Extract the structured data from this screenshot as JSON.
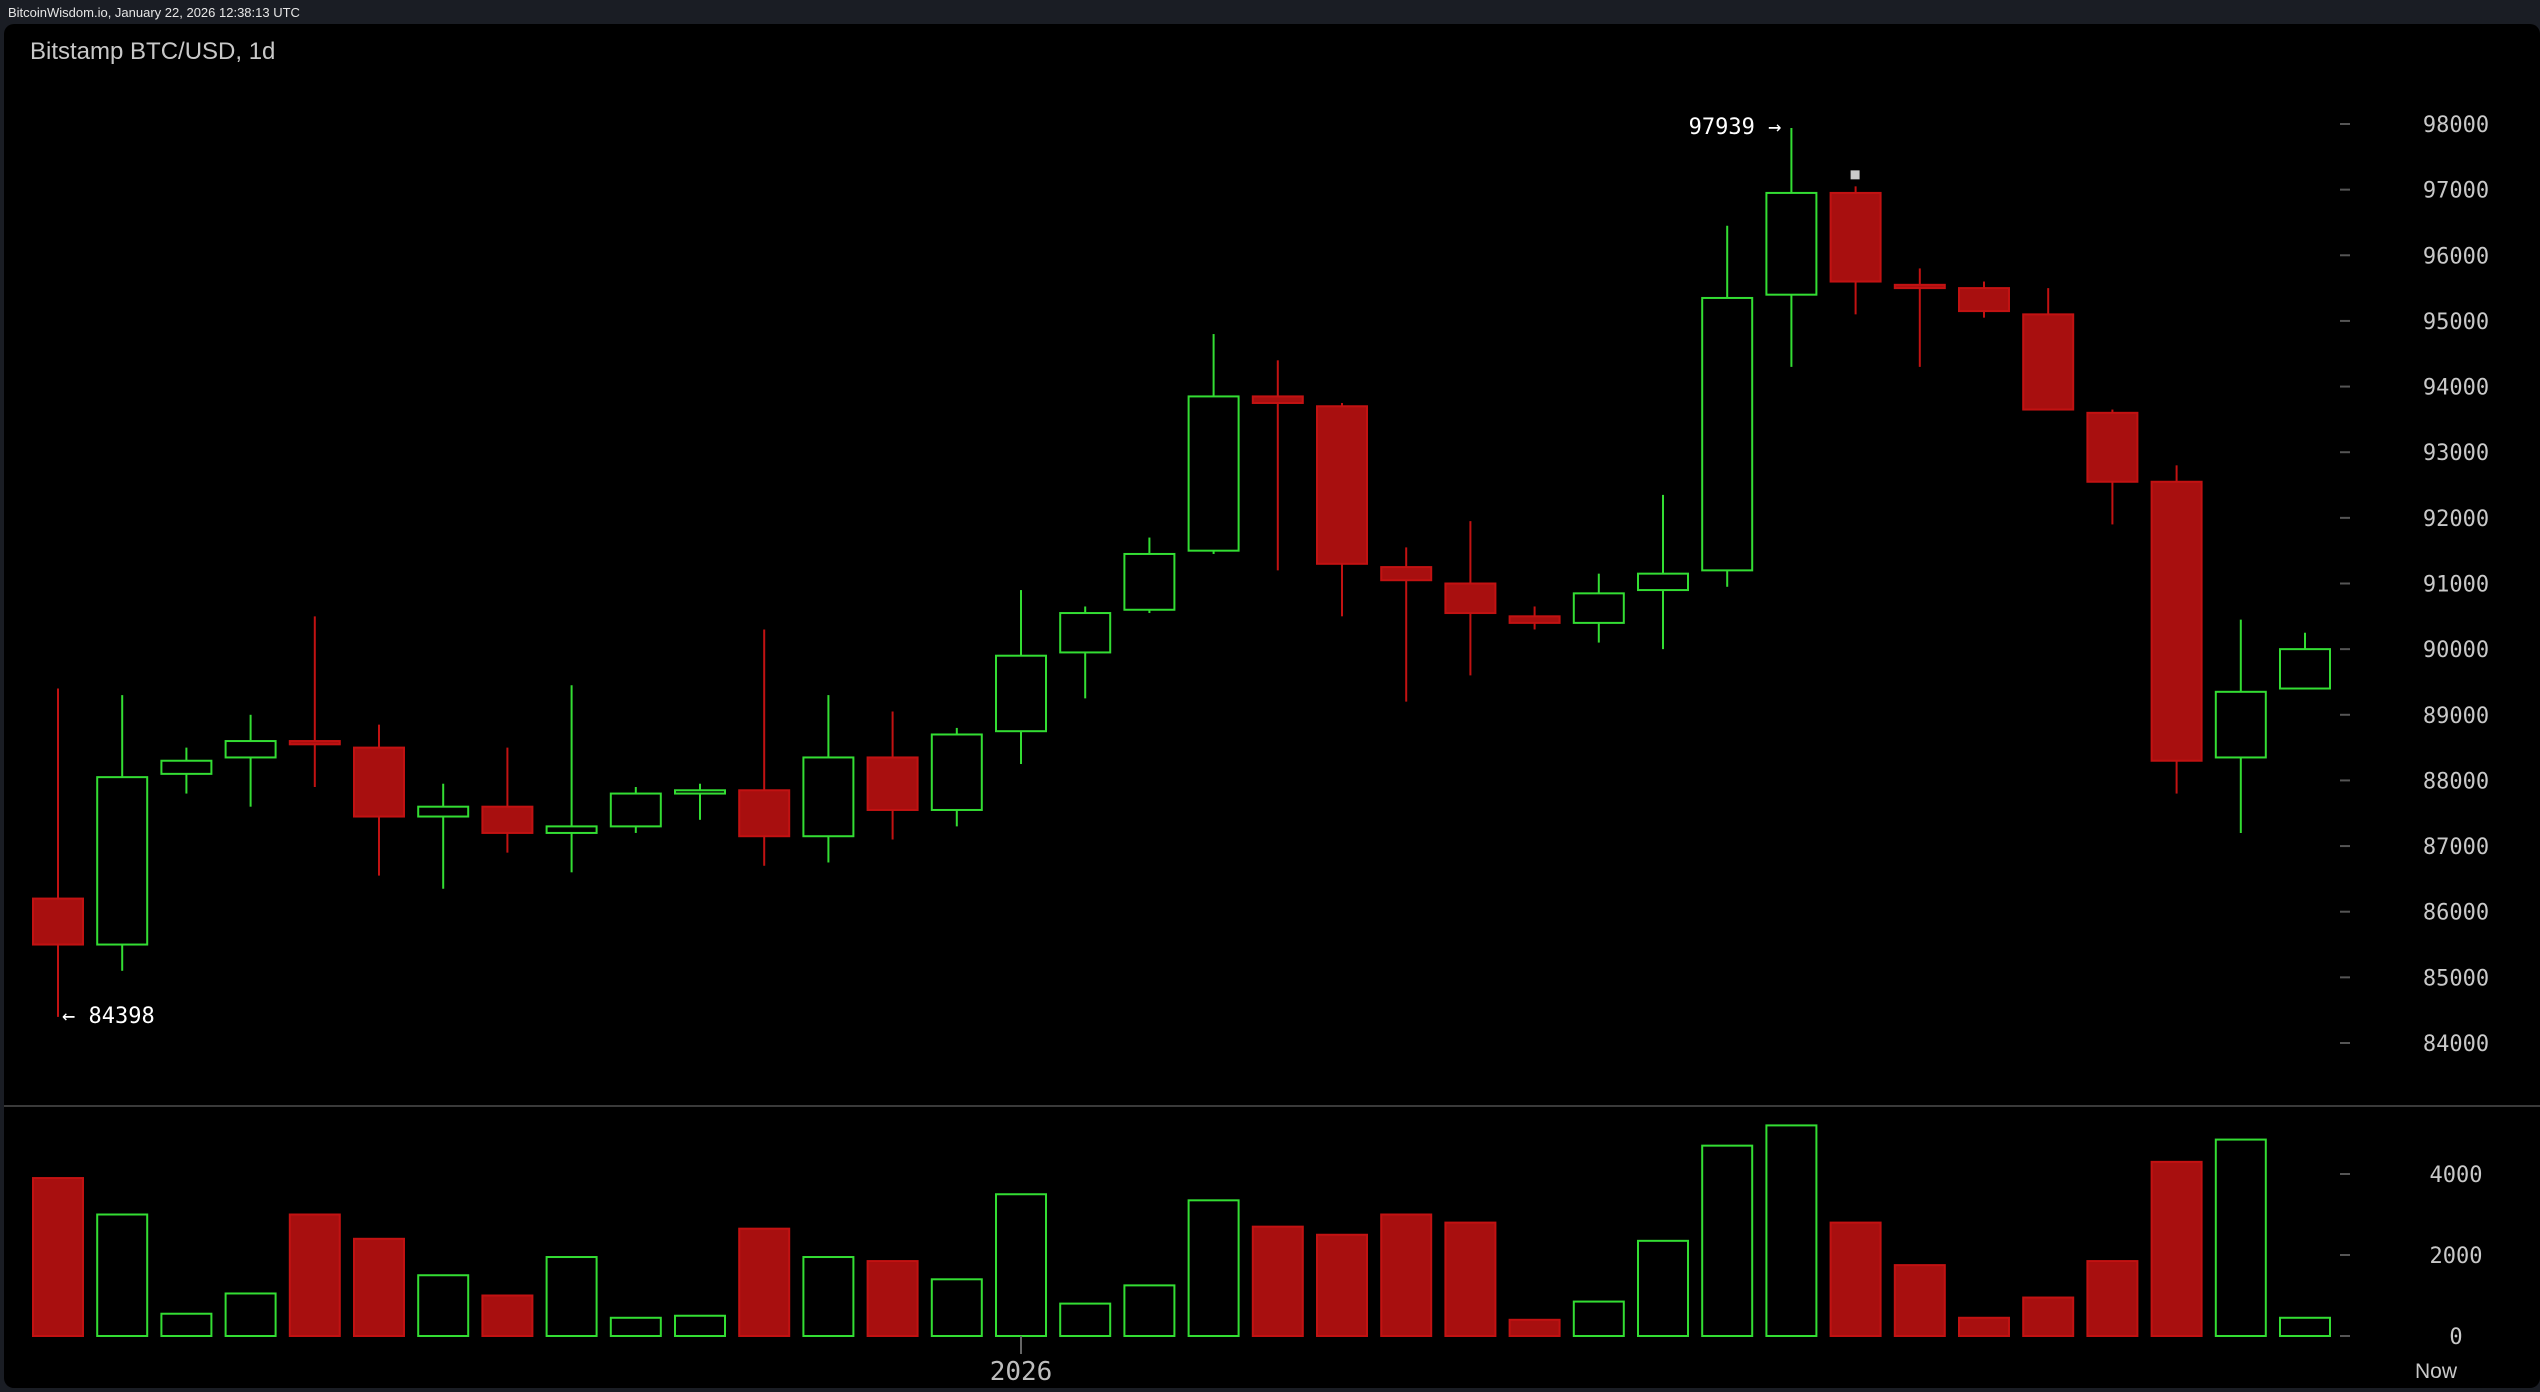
{
  "header": {
    "source_line": "BitcoinWisdom.io, January 22, 2026 12:38:13 UTC"
  },
  "chart": {
    "title": "Bitstamp BTC/USD, 1d"
  },
  "colors": {
    "up": "#33dd33",
    "down": "#c21212",
    "down_fill": "#a80f0f",
    "separator": "#3a3a3a",
    "tick": "#555555"
  },
  "chart_data": {
    "type": "candlestick",
    "title": "Bitstamp BTC/USD, 1d",
    "x_labels": [
      {
        "index": 15,
        "label": "2026"
      }
    ],
    "now_label": "Now",
    "price_ylim": [
      83000,
      98500
    ],
    "price_ticks": [
      84000,
      85000,
      86000,
      87000,
      88000,
      89000,
      90000,
      91000,
      92000,
      93000,
      94000,
      95000,
      96000,
      97000,
      98000
    ],
    "volume_ylim": [
      0,
      5400
    ],
    "volume_ticks": [
      0,
      2000,
      4000
    ],
    "annotations": [
      {
        "text": "97939 →",
        "index": 27,
        "value": 97939,
        "side": "left"
      },
      {
        "text": "← 84398",
        "index": 0,
        "value": 84398,
        "side": "right"
      }
    ],
    "candles": [
      {
        "open": 86200,
        "high": 89400,
        "low": 84398,
        "close": 85500,
        "volume": 3900
      },
      {
        "open": 85500,
        "high": 89300,
        "low": 85100,
        "close": 88050,
        "volume": 3000
      },
      {
        "open": 88100,
        "high": 88500,
        "low": 87800,
        "close": 88300,
        "volume": 550
      },
      {
        "open": 88350,
        "high": 89000,
        "low": 87600,
        "close": 88600,
        "volume": 1050
      },
      {
        "open": 88600,
        "high": 90500,
        "low": 87900,
        "close": 88550,
        "volume": 3000
      },
      {
        "open": 88500,
        "high": 88850,
        "low": 86550,
        "close": 87450,
        "volume": 2400
      },
      {
        "open": 87450,
        "high": 87950,
        "low": 86350,
        "close": 87600,
        "volume": 1500
      },
      {
        "open": 87600,
        "high": 88500,
        "low": 86900,
        "close": 87200,
        "volume": 1000
      },
      {
        "open": 87200,
        "high": 89450,
        "low": 86600,
        "close": 87300,
        "volume": 1950
      },
      {
        "open": 87300,
        "high": 87900,
        "low": 87200,
        "close": 87800,
        "volume": 450
      },
      {
        "open": 87800,
        "high": 87950,
        "low": 87400,
        "close": 87850,
        "volume": 500
      },
      {
        "open": 87850,
        "high": 90300,
        "low": 86700,
        "close": 87150,
        "volume": 2650
      },
      {
        "open": 87150,
        "high": 89300,
        "low": 86750,
        "close": 88350,
        "volume": 1950
      },
      {
        "open": 88350,
        "high": 89050,
        "low": 87100,
        "close": 87550,
        "volume": 1850
      },
      {
        "open": 87550,
        "high": 88800,
        "low": 87300,
        "close": 88700,
        "volume": 1400
      },
      {
        "open": 88750,
        "high": 90900,
        "low": 88250,
        "close": 89900,
        "volume": 3500
      },
      {
        "open": 89950,
        "high": 90650,
        "low": 89250,
        "close": 90550,
        "volume": 800
      },
      {
        "open": 90600,
        "high": 91700,
        "low": 90550,
        "close": 91450,
        "volume": 1250
      },
      {
        "open": 91500,
        "high": 94800,
        "low": 91450,
        "close": 93850,
        "volume": 3350
      },
      {
        "open": 93850,
        "high": 94400,
        "low": 91200,
        "close": 93750,
        "volume": 2700
      },
      {
        "open": 93700,
        "high": 93750,
        "low": 90500,
        "close": 91300,
        "volume": 2500
      },
      {
        "open": 91250,
        "high": 91550,
        "low": 89200,
        "close": 91050,
        "volume": 3000
      },
      {
        "open": 91000,
        "high": 91950,
        "low": 89600,
        "close": 90550,
        "volume": 2800
      },
      {
        "open": 90500,
        "high": 90650,
        "low": 90300,
        "close": 90400,
        "volume": 400
      },
      {
        "open": 90400,
        "high": 91150,
        "low": 90100,
        "close": 90850,
        "volume": 850
      },
      {
        "open": 90900,
        "high": 92350,
        "low": 90000,
        "close": 91150,
        "volume": 2350
      },
      {
        "open": 91200,
        "high": 96450,
        "low": 90950,
        "close": 95350,
        "volume": 4700
      },
      {
        "open": 95400,
        "high": 97939,
        "low": 94300,
        "close": 96950,
        "volume": 5200
      },
      {
        "open": 96950,
        "high": 97050,
        "low": 95100,
        "close": 95600,
        "volume": 2800
      },
      {
        "open": 95550,
        "high": 95800,
        "low": 94300,
        "close": 95500,
        "volume": 1750
      },
      {
        "open": 95500,
        "high": 95600,
        "low": 95050,
        "close": 95150,
        "volume": 450
      },
      {
        "open": 95100,
        "high": 95500,
        "low": 93650,
        "close": 93650,
        "volume": 950
      },
      {
        "open": 93600,
        "high": 93650,
        "low": 91900,
        "close": 92550,
        "volume": 1850
      },
      {
        "open": 92550,
        "high": 92800,
        "low": 87800,
        "close": 88300,
        "volume": 4300
      },
      {
        "open": 88350,
        "high": 90450,
        "low": 87200,
        "close": 89350,
        "volume": 4850
      },
      {
        "open": 89400,
        "high": 90250,
        "low": 89400,
        "close": 90000,
        "volume": 450
      }
    ]
  }
}
